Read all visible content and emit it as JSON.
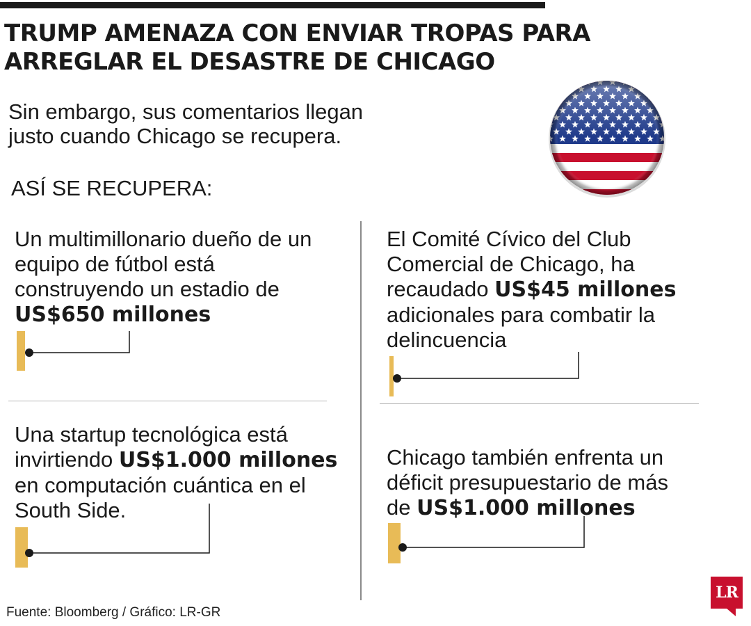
{
  "headline": {
    "line1": "TRUMP AMENAZA CON ENVIAR TROPAS PARA",
    "line2": "ARREGLAR EL DESASTRE DE CHICAGO"
  },
  "subhead": {
    "line1": "Sin embargo, sus comentarios llegan",
    "line2": "justo cuando Chicago se recupera."
  },
  "section_label": "ASÍ SE RECUPERA:",
  "facts": {
    "stadium": {
      "l1": "Un multimillonario dueño de un",
      "l2": "equipo de fútbol está",
      "l3": "construyendo un estadio de",
      "amount": "US$650 millones"
    },
    "civic": {
      "l1": "El Comité Cívico del Club",
      "l2": "Comercial de Chicago, ha",
      "l3_pre": "recaudado ",
      "amount": "US$45 millones",
      "l4": "adicionales para combatir la",
      "l5": "delincuencia"
    },
    "startup": {
      "l1": "Una startup tecnológica está",
      "l2_pre": "invirtiendo ",
      "amount": "US$1.000 millones",
      "l3": "en computación cuántica en el",
      "l4": "South Side."
    },
    "deficit": {
      "l1": "Chicago también enfrenta un",
      "l2": "déficit presupuestario de más",
      "l3_pre": "de ",
      "amount": "US$1.000 millones"
    }
  },
  "source": "Fuente: Bloomberg / Gráfico: LR-GR",
  "logo": "LR",
  "icons": {
    "flag": "us-flag-icon",
    "logo": "lr-logo-icon"
  },
  "colors": {
    "accent_bar": "#e8bb57",
    "flag_red": "#c8102e",
    "flag_blue": "#1f3a8a",
    "logo_red": "#c8102e"
  }
}
